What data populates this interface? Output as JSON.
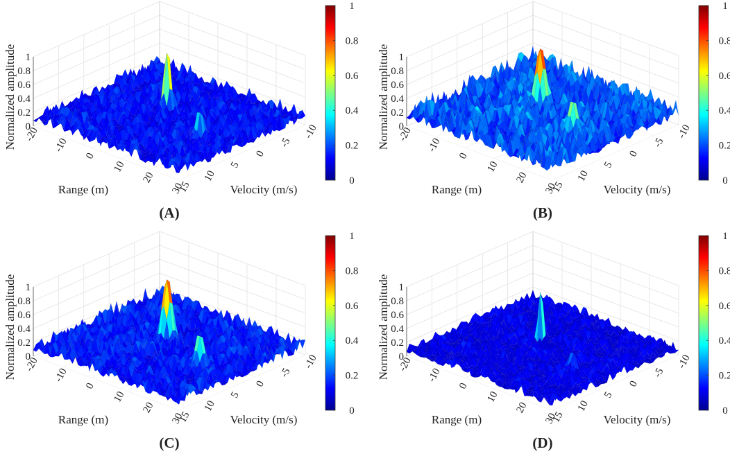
{
  "figure": {
    "title": ""
  },
  "colormap": [
    "#00008f",
    "#0000ff",
    "#0080ff",
    "#00ffff",
    "#80ff80",
    "#ffff00",
    "#ff8000",
    "#ff0000",
    "#800000"
  ],
  "chart_data": [
    {
      "type": "surface",
      "panel_label": "(A)",
      "xlabel": "Range (m)",
      "ylabel": "Velocity (m/s)",
      "zlabel": "Normalized amplitude",
      "xlim": [
        -20,
        30
      ],
      "ylim": [
        -10,
        15
      ],
      "zlim": [
        0,
        1
      ],
      "xticks": [
        -20,
        -10,
        0,
        10,
        20,
        30
      ],
      "yticks": [
        -10,
        -5,
        0,
        5,
        10,
        15
      ],
      "zticks": [
        0,
        0.2,
        0.4,
        0.6,
        0.8,
        1
      ],
      "colorbar": {
        "ticks": [
          0,
          0.2,
          0.4,
          0.6,
          0.8,
          1
        ]
      },
      "noise_floor": 0.2,
      "seed": 11,
      "peaks": [
        {
          "range": 0,
          "velocity": 0,
          "amplitude": 1.0,
          "width": 1.4
        },
        {
          "range": 18,
          "velocity": 4,
          "amplitude": 0.55,
          "width": 1.4
        }
      ]
    },
    {
      "type": "surface",
      "panel_label": "(B)",
      "xlabel": "Range (m)",
      "ylabel": "Velocity (m/s)",
      "zlabel": "Normalized amplitude",
      "xlim": [
        -20,
        30
      ],
      "ylim": [
        -10,
        15
      ],
      "zlim": [
        0,
        1
      ],
      "xticks": [
        -20,
        -10,
        0,
        10,
        20,
        30
      ],
      "yticks": [
        -10,
        -5,
        0,
        5,
        10,
        15
      ],
      "zticks": [
        0,
        0.2,
        0.4,
        0.6,
        0.8,
        1
      ],
      "colorbar": {
        "ticks": [
          0,
          0.2,
          0.4,
          0.6,
          0.8,
          1
        ]
      },
      "noise_floor": 0.3,
      "seed": 23,
      "peaks": [
        {
          "range": 0,
          "velocity": 0,
          "amplitude": 1.0,
          "width": 2.2
        },
        {
          "range": 18,
          "velocity": 4,
          "amplitude": 0.65,
          "width": 2.2
        }
      ]
    },
    {
      "type": "surface",
      "panel_label": "(C)",
      "xlabel": "Range (m)",
      "ylabel": "Velocity (m/s)",
      "zlabel": "Normalized amplitude",
      "xlim": [
        -20,
        30
      ],
      "ylim": [
        -10,
        15
      ],
      "zlim": [
        0,
        1
      ],
      "xticks": [
        -20,
        -10,
        0,
        10,
        20,
        30
      ],
      "yticks": [
        -10,
        -5,
        0,
        5,
        10,
        15
      ],
      "zticks": [
        0,
        0.2,
        0.4,
        0.6,
        0.8,
        1
      ],
      "colorbar": {
        "ticks": [
          0,
          0.2,
          0.4,
          0.6,
          0.8,
          1
        ]
      },
      "noise_floor": 0.22,
      "seed": 37,
      "peaks": [
        {
          "range": 0,
          "velocity": 0,
          "amplitude": 1.0,
          "width": 2.0
        },
        {
          "range": 18,
          "velocity": 4,
          "amplitude": 0.6,
          "width": 2.0
        }
      ]
    },
    {
      "type": "surface",
      "panel_label": "(D)",
      "xlabel": "Range (m)",
      "ylabel": "Velocity (m/s)",
      "zlabel": "Normalized amplitude",
      "xlim": [
        -20,
        30
      ],
      "ylim": [
        -10,
        15
      ],
      "zlim": [
        0,
        1
      ],
      "xticks": [
        -20,
        -10,
        0,
        10,
        20,
        30
      ],
      "yticks": [
        -10,
        -5,
        0,
        5,
        10,
        15
      ],
      "zticks": [
        0,
        0.2,
        0.4,
        0.6,
        0.8,
        1
      ],
      "colorbar": {
        "ticks": [
          0,
          0.2,
          0.4,
          0.6,
          0.8,
          1
        ]
      },
      "noise_floor": 0.15,
      "seed": 51,
      "peaks": [
        {
          "range": 0,
          "velocity": 0,
          "amplitude": 1.0,
          "width": 0.9
        },
        {
          "range": 18,
          "velocity": 4,
          "amplitude": 0.5,
          "width": 0.9
        }
      ]
    }
  ]
}
